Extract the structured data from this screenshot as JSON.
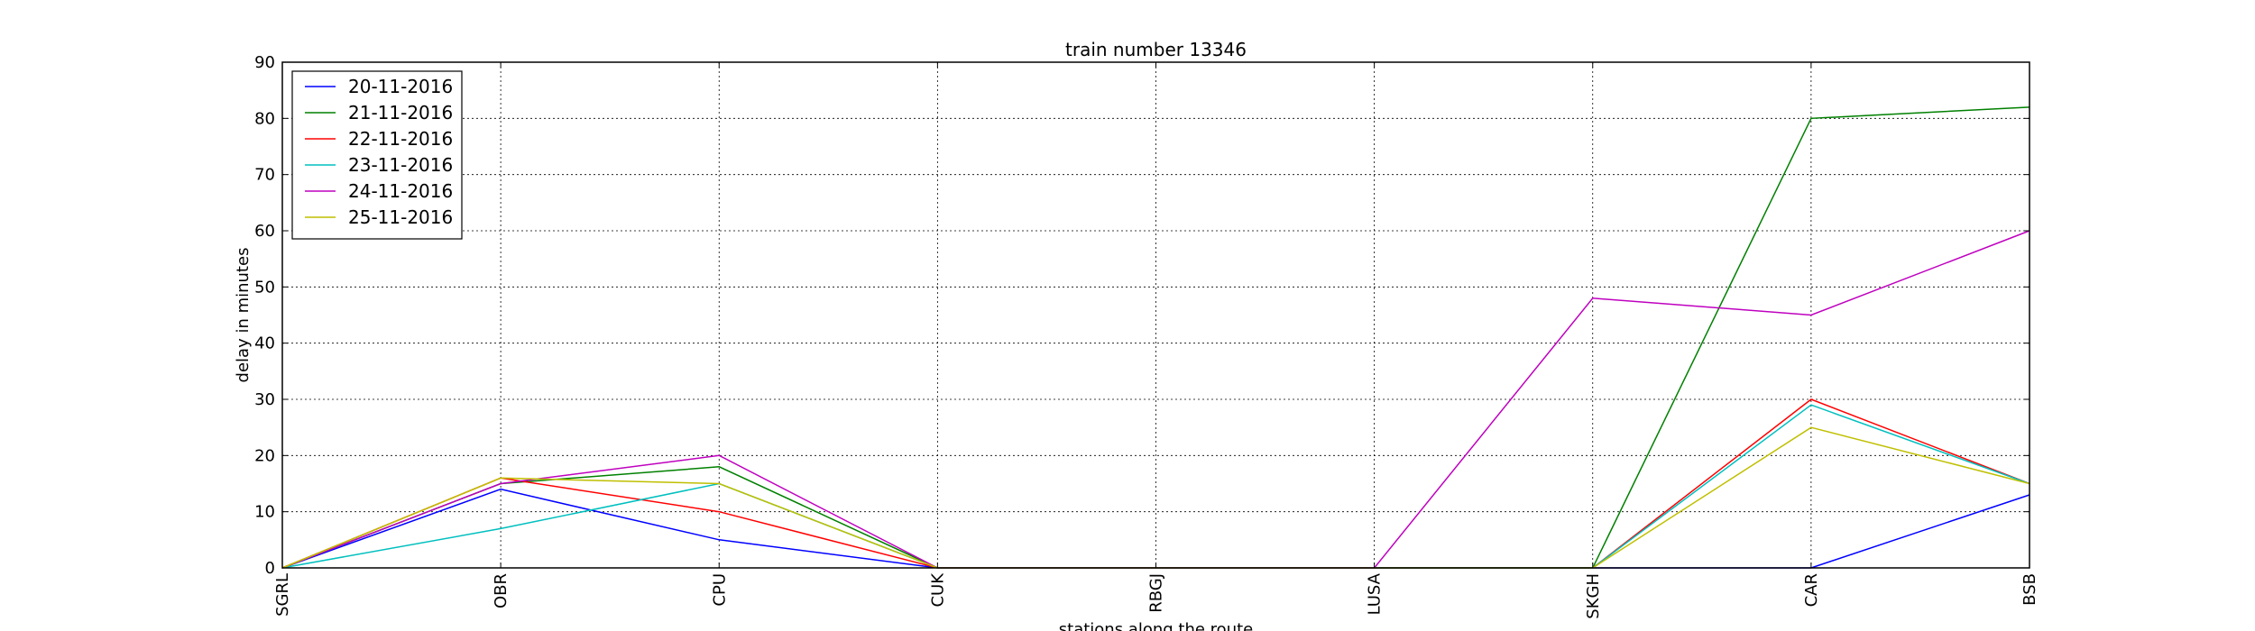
{
  "chart_data": {
    "type": "line",
    "title": "train number 13346",
    "xlabel": "stations along the route",
    "ylabel": "delay in minutes",
    "categories": [
      "SGRL",
      "OBR",
      "CPU",
      "CUK",
      "RBGJ",
      "LUSA",
      "SKGH",
      "CAR",
      "BSB"
    ],
    "ylim": [
      0,
      90
    ],
    "yticks": [
      0,
      10,
      20,
      30,
      40,
      50,
      60,
      70,
      80,
      90
    ],
    "grid": true,
    "legend_position": "top-left",
    "series": [
      {
        "name": "20-11-2016",
        "color": "#0000ff",
        "values": [
          0,
          14,
          5,
          0,
          0,
          0,
          0,
          0,
          13
        ]
      },
      {
        "name": "21-11-2016",
        "color": "#008000",
        "values": [
          0,
          15,
          18,
          0,
          0,
          0,
          0,
          80,
          82
        ]
      },
      {
        "name": "22-11-2016",
        "color": "#ff0000",
        "values": [
          0,
          16,
          10,
          0,
          0,
          0,
          0,
          30,
          15
        ]
      },
      {
        "name": "23-11-2016",
        "color": "#00bfbf",
        "values": [
          0,
          7,
          15,
          0,
          0,
          0,
          0,
          29,
          15
        ]
      },
      {
        "name": "24-11-2016",
        "color": "#bf00bf",
        "values": [
          0,
          15,
          20,
          0,
          0,
          0,
          48,
          45,
          60
        ]
      },
      {
        "name": "25-11-2016",
        "color": "#bfbf00",
        "values": [
          0,
          16,
          15,
          0,
          0,
          0,
          0,
          25,
          15
        ]
      }
    ]
  }
}
